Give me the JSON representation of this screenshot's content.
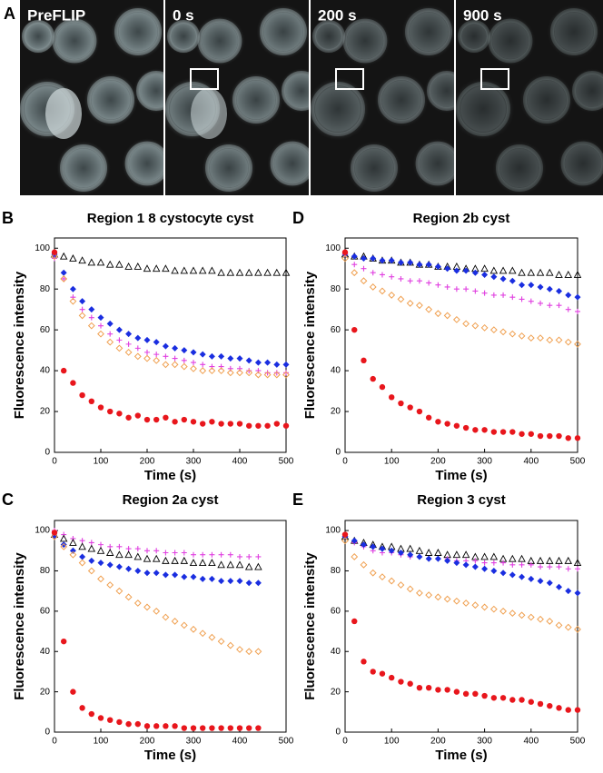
{
  "panel_a": {
    "label": "A",
    "frames": [
      "PreFLIP",
      "0 s",
      "200 s",
      "900 s"
    ]
  },
  "chart_data": [
    {
      "type": "scatter",
      "panel": "B",
      "title": "Region 1 8 cystocyte cyst",
      "xlabel": "Time  (s)",
      "ylabel": "Fluorescence intensity",
      "xlim": [
        0,
        500
      ],
      "ylim": [
        0,
        105
      ],
      "xticks": [
        0,
        100,
        200,
        300,
        400,
        500
      ],
      "yticks": [
        0,
        20,
        40,
        60,
        80,
        100
      ],
      "x": [
        0,
        20,
        40,
        60,
        80,
        100,
        120,
        140,
        160,
        180,
        200,
        220,
        240,
        260,
        280,
        300,
        320,
        340,
        360,
        380,
        400,
        420,
        440,
        460,
        480,
        500
      ],
      "series": [
        {
          "marker": "triangle",
          "color": "#000000",
          "values": [
            97,
            96,
            95,
            94,
            93,
            93,
            92,
            92,
            91,
            91,
            90,
            90,
            90,
            89,
            89,
            89,
            89,
            89,
            88,
            88,
            88,
            88,
            88,
            88,
            88,
            88
          ]
        },
        {
          "marker": "diamond",
          "color": "#1a2ee0",
          "values": [
            97,
            88,
            80,
            74,
            70,
            66,
            63,
            60,
            58,
            56,
            55,
            54,
            52,
            51,
            50,
            49,
            48,
            47,
            47,
            46,
            46,
            45,
            44,
            44,
            43,
            43
          ]
        },
        {
          "marker": "plus",
          "color": "#e040e0",
          "values": [
            95,
            85,
            76,
            70,
            66,
            62,
            58,
            55,
            53,
            51,
            49,
            48,
            47,
            46,
            45,
            44,
            43,
            42,
            42,
            41,
            41,
            40,
            40,
            39,
            39,
            39
          ]
        },
        {
          "marker": "open-diamond",
          "color": "#f0a050",
          "values": [
            96,
            85,
            74,
            67,
            62,
            58,
            54,
            51,
            49,
            47,
            46,
            45,
            43,
            43,
            42,
            41,
            40,
            40,
            40,
            39,
            39,
            39,
            38,
            38,
            38,
            38
          ]
        },
        {
          "marker": "circle",
          "color": "#e8161c",
          "values": [
            98,
            40,
            34,
            28,
            25,
            22,
            20,
            19,
            17,
            18,
            16,
            16,
            17,
            15,
            16,
            15,
            14,
            15,
            14,
            14,
            14,
            13,
            13,
            13,
            14,
            13
          ]
        }
      ]
    },
    {
      "type": "scatter",
      "panel": "D",
      "title": "Region 2b cyst",
      "xlabel": "Time  (s)",
      "ylabel": "Fluorescence intensity",
      "xlim": [
        0,
        500
      ],
      "ylim": [
        0,
        105
      ],
      "xticks": [
        0,
        100,
        200,
        300,
        400,
        500
      ],
      "yticks": [
        0,
        20,
        40,
        60,
        80,
        100
      ],
      "x": [
        0,
        20,
        40,
        60,
        80,
        100,
        120,
        140,
        160,
        180,
        200,
        220,
        240,
        260,
        280,
        300,
        320,
        340,
        360,
        380,
        400,
        420,
        440,
        460,
        480,
        500
      ],
      "series": [
        {
          "marker": "triangle",
          "color": "#000000",
          "values": [
            97,
            96,
            96,
            95,
            94,
            94,
            93,
            93,
            92,
            92,
            91,
            91,
            91,
            90,
            90,
            90,
            89,
            89,
            89,
            88,
            88,
            88,
            88,
            87,
            87,
            87
          ]
        },
        {
          "marker": "diamond",
          "color": "#1a2ee0",
          "values": [
            97,
            96,
            95,
            95,
            94,
            94,
            93,
            93,
            92,
            92,
            91,
            90,
            89,
            89,
            88,
            87,
            86,
            85,
            84,
            82,
            82,
            81,
            80,
            79,
            77,
            76
          ]
        },
        {
          "marker": "plus",
          "color": "#e040e0",
          "values": [
            97,
            92,
            90,
            88,
            87,
            86,
            85,
            84,
            84,
            83,
            82,
            81,
            80,
            80,
            79,
            78,
            77,
            77,
            76,
            75,
            74,
            73,
            72,
            72,
            70,
            69
          ]
        },
        {
          "marker": "open-diamond",
          "color": "#f0a050",
          "values": [
            95,
            88,
            84,
            81,
            79,
            77,
            75,
            73,
            72,
            70,
            68,
            67,
            65,
            63,
            62,
            61,
            60,
            59,
            58,
            57,
            56,
            56,
            55,
            55,
            54,
            53
          ]
        },
        {
          "marker": "circle",
          "color": "#e8161c",
          "values": [
            98,
            60,
            45,
            36,
            32,
            27,
            24,
            22,
            20,
            17,
            15,
            14,
            13,
            12,
            11,
            11,
            10,
            10,
            10,
            9,
            9,
            8,
            8,
            8,
            7,
            7
          ]
        }
      ]
    },
    {
      "type": "scatter",
      "panel": "C",
      "title": "Region 2a cyst",
      "xlabel": "Time  (s)",
      "ylabel": "Fluorescence intensity",
      "xlim": [
        0,
        500
      ],
      "ylim": [
        0,
        105
      ],
      "xticks": [
        0,
        100,
        200,
        300,
        400,
        500
      ],
      "yticks": [
        0,
        20,
        40,
        60,
        80,
        100
      ],
      "x": [
        0,
        20,
        40,
        60,
        80,
        100,
        120,
        140,
        160,
        180,
        200,
        220,
        240,
        260,
        280,
        300,
        320,
        340,
        360,
        380,
        400,
        420,
        440
      ],
      "series": [
        {
          "marker": "plus",
          "color": "#e040e0",
          "values": [
            100,
            98,
            96,
            95,
            94,
            93,
            92,
            92,
            91,
            91,
            90,
            90,
            89,
            89,
            89,
            88,
            88,
            88,
            88,
            88,
            87,
            87,
            87
          ]
        },
        {
          "marker": "triangle",
          "color": "#000000",
          "values": [
            98,
            96,
            94,
            92,
            91,
            90,
            89,
            88,
            88,
            87,
            86,
            86,
            85,
            85,
            85,
            84,
            84,
            84,
            83,
            83,
            83,
            82,
            82
          ]
        },
        {
          "marker": "diamond",
          "color": "#1a2ee0",
          "values": [
            97,
            93,
            90,
            87,
            85,
            84,
            83,
            82,
            81,
            80,
            79,
            79,
            78,
            78,
            77,
            77,
            76,
            76,
            75,
            75,
            75,
            74,
            74
          ]
        },
        {
          "marker": "open-diamond",
          "color": "#f0a050",
          "values": [
            97,
            92,
            88,
            84,
            80,
            76,
            73,
            70,
            67,
            64,
            62,
            60,
            57,
            55,
            53,
            51,
            49,
            47,
            45,
            43,
            41,
            40,
            40
          ]
        },
        {
          "marker": "circle",
          "color": "#e8161c",
          "values": [
            99,
            45,
            20,
            12,
            9,
            7,
            6,
            5,
            4,
            4,
            3,
            3,
            3,
            3,
            2,
            2,
            2,
            2,
            2,
            2,
            2,
            2,
            2
          ]
        }
      ]
    },
    {
      "type": "scatter",
      "panel": "E",
      "title": "Region 3 cyst",
      "xlabel": "Time  (s)",
      "ylabel": "Fluorescence intensity",
      "xlim": [
        0,
        500
      ],
      "ylim": [
        0,
        105
      ],
      "xticks": [
        0,
        100,
        200,
        300,
        400,
        500
      ],
      "yticks": [
        0,
        20,
        40,
        60,
        80,
        100
      ],
      "x": [
        0,
        20,
        40,
        60,
        80,
        100,
        120,
        140,
        160,
        180,
        200,
        220,
        240,
        260,
        280,
        300,
        320,
        340,
        360,
        380,
        400,
        420,
        440,
        460,
        480,
        500
      ],
      "series": [
        {
          "marker": "triangle",
          "color": "#000000",
          "values": [
            97,
            95,
            94,
            93,
            92,
            92,
            91,
            91,
            90,
            89,
            89,
            88,
            88,
            88,
            87,
            87,
            87,
            86,
            86,
            86,
            85,
            85,
            85,
            85,
            85,
            84
          ]
        },
        {
          "marker": "plus",
          "color": "#e040e0",
          "values": [
            97,
            94,
            92,
            90,
            89,
            89,
            88,
            87,
            87,
            86,
            86,
            86,
            85,
            85,
            85,
            84,
            84,
            84,
            83,
            83,
            83,
            82,
            82,
            82,
            81,
            81
          ]
        },
        {
          "marker": "diamond",
          "color": "#1a2ee0",
          "values": [
            97,
            95,
            93,
            92,
            91,
            90,
            89,
            88,
            87,
            86,
            86,
            85,
            84,
            83,
            82,
            81,
            80,
            79,
            78,
            77,
            76,
            75,
            74,
            72,
            70,
            69
          ]
        },
        {
          "marker": "open-diamond",
          "color": "#f0a050",
          "values": [
            95,
            87,
            83,
            79,
            77,
            75,
            73,
            71,
            69,
            68,
            67,
            66,
            65,
            64,
            63,
            62,
            61,
            60,
            59,
            58,
            57,
            56,
            55,
            53,
            52,
            51
          ]
        },
        {
          "marker": "circle",
          "color": "#e8161c",
          "values": [
            98,
            55,
            35,
            30,
            29,
            27,
            25,
            24,
            22,
            22,
            21,
            21,
            20,
            19,
            19,
            18,
            17,
            17,
            16,
            16,
            15,
            14,
            13,
            12,
            11,
            11
          ]
        }
      ]
    }
  ]
}
